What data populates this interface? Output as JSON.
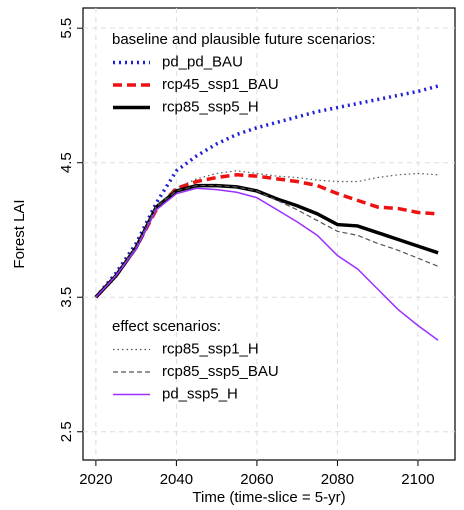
{
  "chart_data": {
    "type": "line",
    "ylabel": "Forest LAI",
    "xlabel": "Time (time-slice = 5-yr)",
    "x": [
      2020,
      2025,
      2030,
      2035,
      2040,
      2045,
      2050,
      2055,
      2060,
      2065,
      2070,
      2075,
      2080,
      2085,
      2090,
      2095,
      2100,
      2105
    ],
    "xlim": [
      2016.8,
      2109.2
    ],
    "xticks": [
      2020,
      2040,
      2060,
      2080,
      2100
    ],
    "ylim": [
      2.29,
      5.65
    ],
    "yticks": [
      2.5,
      3.5,
      4.5,
      5.5
    ],
    "grid": true,
    "series_groups": [
      {
        "title": "baseline and plausible future scenarios:",
        "series": [
          {
            "name": "pd_pd_BAU",
            "color": "#1f1fd6",
            "style": "dotted",
            "width": 3.5,
            "values": [
              3.5,
              3.68,
              3.9,
              4.2,
              4.44,
              4.55,
              4.64,
              4.71,
              4.76,
              4.8,
              4.84,
              4.88,
              4.91,
              4.94,
              4.97,
              5.0,
              5.03,
              5.07
            ]
          },
          {
            "name": "rcp45_ssp1_BAU",
            "color": "#ee1111",
            "style": "dashed",
            "width": 3.5,
            "values": [
              3.5,
              3.66,
              3.87,
              4.15,
              4.31,
              4.36,
              4.39,
              4.41,
              4.4,
              4.38,
              4.36,
              4.33,
              4.27,
              4.22,
              4.17,
              4.16,
              4.13,
              4.12
            ]
          },
          {
            "name": "rcp85_ssp5_H",
            "color": "#000000",
            "style": "solid",
            "width": 3.5,
            "values": [
              3.5,
              3.66,
              3.87,
              4.17,
              4.29,
              4.33,
              4.33,
              4.32,
              4.29,
              4.23,
              4.18,
              4.12,
              4.04,
              4.03,
              3.98,
              3.93,
              3.88,
              3.83
            ]
          }
        ]
      },
      {
        "title": "effect scenarios:",
        "series": [
          {
            "name": "rcp85_ssp1_H",
            "color": "#555555",
            "style": "dotted",
            "width": 1.2,
            "values": [
              3.5,
              3.67,
              3.88,
              4.18,
              4.31,
              4.38,
              4.42,
              4.44,
              4.42,
              4.4,
              4.39,
              4.37,
              4.36,
              4.36,
              4.39,
              4.41,
              4.42,
              4.41
            ]
          },
          {
            "name": "rcp85_ssp5_BAU",
            "color": "#555555",
            "style": "dashed",
            "width": 1.2,
            "values": [
              3.5,
              3.66,
              3.87,
              4.17,
              4.29,
              4.33,
              4.33,
              4.32,
              4.29,
              4.22,
              4.15,
              4.07,
              3.99,
              3.96,
              3.9,
              3.85,
              3.79,
              3.73
            ]
          },
          {
            "name": "pd_ssp5_H",
            "color": "#9b30ff",
            "style": "solid",
            "width": 1.5,
            "values": [
              3.5,
              3.66,
              3.86,
              4.15,
              4.27,
              4.31,
              4.3,
              4.28,
              4.24,
              4.15,
              4.06,
              3.96,
              3.81,
              3.71,
              3.56,
              3.41,
              3.29,
              3.18
            ]
          }
        ]
      }
    ]
  }
}
